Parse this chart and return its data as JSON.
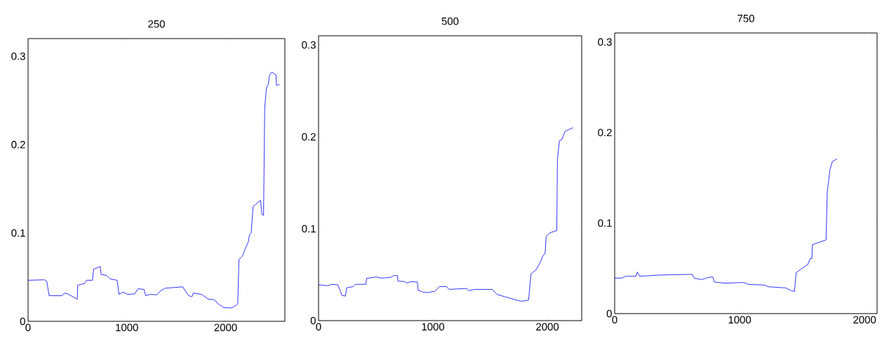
{
  "chart_data": [
    {
      "type": "line",
      "title": "250",
      "xlim": [
        0,
        2600
      ],
      "ylim": [
        0,
        0.32
      ],
      "xticks": [
        0,
        1000,
        2000
      ],
      "yticks": [
        0,
        0.1,
        0.2,
        0.3
      ],
      "grid": false,
      "series": [
        {
          "color": "#0000ff",
          "x": [
            0,
            166,
            190,
            213,
            261,
            344,
            368,
            403,
            498,
            503,
            569,
            593,
            652,
            664,
            730,
            740,
            795,
            830,
            902,
            920,
            961,
            1008,
            1079,
            1115,
            1174,
            1191,
            1234,
            1305,
            1340,
            1388,
            1566,
            1625,
            1661,
            1673,
            1756,
            1827,
            1886,
            1922,
            1981,
            2064,
            2111,
            2123,
            2135,
            2171,
            2206,
            2230,
            2242,
            2259,
            2278,
            2301,
            2353,
            2368,
            2384,
            2396,
            2413,
            2432,
            2444,
            2467,
            2510,
            2515,
            2546
          ],
          "values": [
            0.0465,
            0.047,
            0.045,
            0.029,
            0.029,
            0.029,
            0.032,
            0.031,
            0.025,
            0.041,
            0.0425,
            0.0465,
            0.0465,
            0.059,
            0.062,
            0.053,
            0.052,
            0.048,
            0.0465,
            0.0305,
            0.033,
            0.0305,
            0.031,
            0.037,
            0.036,
            0.029,
            0.0305,
            0.03,
            0.0345,
            0.0375,
            0.039,
            0.029,
            0.028,
            0.032,
            0.0305,
            0.025,
            0.0245,
            0.02,
            0.0155,
            0.0152,
            0.0185,
            0.02,
            0.07,
            0.074,
            0.084,
            0.09,
            0.098,
            0.0997,
            0.13,
            0.132,
            0.137,
            0.121,
            0.12,
            0.242,
            0.264,
            0.268,
            0.278,
            0.282,
            0.279,
            0.267,
            0.268
          ]
        }
      ]
    },
    {
      "type": "line",
      "title": "500",
      "xlim": [
        0,
        2300
      ],
      "ylim": [
        0,
        0.31
      ],
      "xticks": [
        0,
        1000,
        2000
      ],
      "yticks": [
        0,
        0.1,
        0.2,
        0.3
      ],
      "grid": false,
      "series": [
        {
          "color": "#0000ff",
          "x": [
            0,
            86,
            107,
            168,
            188,
            203,
            235,
            246,
            301,
            321,
            413,
            420,
            506,
            546,
            628,
            659,
            690,
            694,
            751,
            772,
            813,
            864,
            870,
            915,
            956,
            1017,
            1058,
            1120,
            1140,
            1294,
            1314,
            1365,
            1519,
            1560,
            1642,
            1713,
            1775,
            1836,
            1857,
            1898,
            1939,
            1959,
            1980,
            1990,
            2020,
            2082,
            2088,
            2106,
            2127,
            2154,
            2225
          ],
          "values": [
            0.039,
            0.038,
            0.0395,
            0.039,
            0.033,
            0.0275,
            0.0267,
            0.0357,
            0.037,
            0.0395,
            0.0395,
            0.046,
            0.0476,
            0.0463,
            0.047,
            0.049,
            0.049,
            0.043,
            0.0425,
            0.041,
            0.0425,
            0.042,
            0.033,
            0.031,
            0.0305,
            0.032,
            0.037,
            0.037,
            0.034,
            0.035,
            0.0326,
            0.034,
            0.034,
            0.0285,
            0.0255,
            0.023,
            0.021,
            0.0224,
            0.051,
            0.0548,
            0.0637,
            0.07,
            0.0733,
            0.0917,
            0.0955,
            0.098,
            0.176,
            0.196,
            0.197,
            0.206,
            0.21
          ]
        }
      ]
    },
    {
      "type": "line",
      "title": "750",
      "xlim": [
        0,
        2100
      ],
      "ylim": [
        0,
        0.31
      ],
      "xticks": [
        0,
        1000,
        2000
      ],
      "yticks": [
        0,
        0.1,
        0.2,
        0.3
      ],
      "grid": false,
      "series": [
        {
          "color": "#0000ff",
          "x": [
            0,
            60,
            88,
            172,
            181,
            200,
            359,
            620,
            635,
            695,
            751,
            785,
            798,
            882,
            1032,
            1069,
            1200,
            1228,
            1368,
            1406,
            1439,
            1452,
            1490,
            1546,
            1564,
            1578,
            1583,
            1621,
            1692,
            1701,
            1723,
            1742,
            1779
          ],
          "values": [
            0.0393,
            0.0393,
            0.0413,
            0.0413,
            0.046,
            0.0413,
            0.0426,
            0.0434,
            0.0393,
            0.0375,
            0.04,
            0.0405,
            0.0349,
            0.0336,
            0.0344,
            0.0323,
            0.0315,
            0.0297,
            0.0284,
            0.0258,
            0.0245,
            0.0452,
            0.049,
            0.0543,
            0.0607,
            0.0607,
            0.0762,
            0.078,
            0.0814,
            0.134,
            0.159,
            0.168,
            0.171
          ]
        }
      ]
    }
  ]
}
